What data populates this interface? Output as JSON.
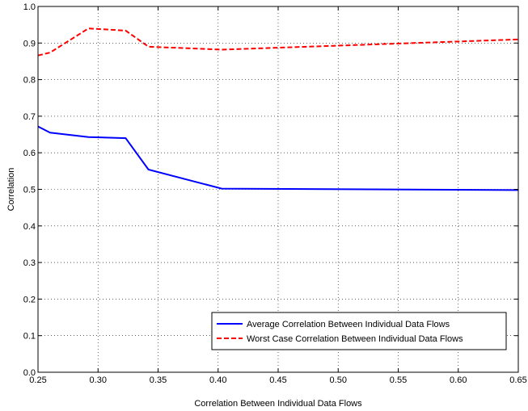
{
  "chart_data": {
    "type": "line",
    "xlabel": "Correlation Between Individual Data Flows",
    "ylabel": "Correlation",
    "xlim": [
      0.25,
      0.65
    ],
    "ylim": [
      0.0,
      1.0
    ],
    "xticks": [
      "0.25",
      "0.30",
      "0.35",
      "0.40",
      "0.45",
      "0.50",
      "0.55",
      "0.60",
      "0.65"
    ],
    "yticks": [
      "0.0",
      "0.1",
      "0.2",
      "0.3",
      "0.4",
      "0.5",
      "0.6",
      "0.7",
      "0.8",
      "0.9",
      "1.0"
    ],
    "grid": true,
    "legend_position": "bottom-right",
    "series": [
      {
        "name": "Average Correlation Between Individual Data Flows",
        "color": "#0000ff",
        "style": "solid",
        "x": [
          0.25,
          0.26,
          0.292,
          0.323,
          0.342,
          0.403,
          0.65
        ],
        "y": [
          0.672,
          0.655,
          0.643,
          0.64,
          0.554,
          0.502,
          0.498
        ]
      },
      {
        "name": "Worst Case Correlation Between Individual Data Flows",
        "color": "#ff0000",
        "style": "dashed",
        "x": [
          0.25,
          0.26,
          0.292,
          0.323,
          0.342,
          0.403,
          0.65
        ],
        "y": [
          0.866,
          0.874,
          0.94,
          0.934,
          0.89,
          0.882,
          0.91
        ]
      }
    ]
  }
}
